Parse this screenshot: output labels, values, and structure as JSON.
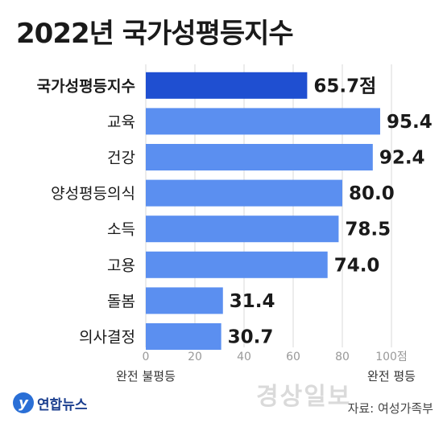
{
  "chart_data": {
    "type": "bar",
    "orientation": "horizontal",
    "title": "2022년 국가성평등지수",
    "categories": [
      "국가성평등지수",
      "교육",
      "건강",
      "양성평등의식",
      "소득",
      "고용",
      "돌봄",
      "의사결정"
    ],
    "values": [
      65.7,
      95.4,
      92.4,
      80.0,
      78.5,
      74.0,
      31.4,
      30.7
    ],
    "value_labels": [
      "65.7점",
      "95.4",
      "92.4",
      "80.0",
      "78.5",
      "74.0",
      "31.4",
      "30.7"
    ],
    "xlim": [
      0,
      100
    ],
    "x_ticks": [
      0,
      20,
      40,
      60,
      80,
      100
    ],
    "x_tick_labels": [
      "0",
      "20",
      "40",
      "60",
      "80",
      "100점"
    ],
    "axis_end_labels": {
      "left": "완전 불평등",
      "right": "완전 평등"
    },
    "highlight_index": 0,
    "colors": {
      "highlight": "#1f4fd1",
      "bar": "#5b8ff0",
      "grid": "#d8d8d8"
    },
    "grid": true
  },
  "footer": {
    "logo_mark": "y",
    "logo_text": "연합뉴스",
    "source": "자료: 여성가족부",
    "watermark": "경상일보"
  }
}
